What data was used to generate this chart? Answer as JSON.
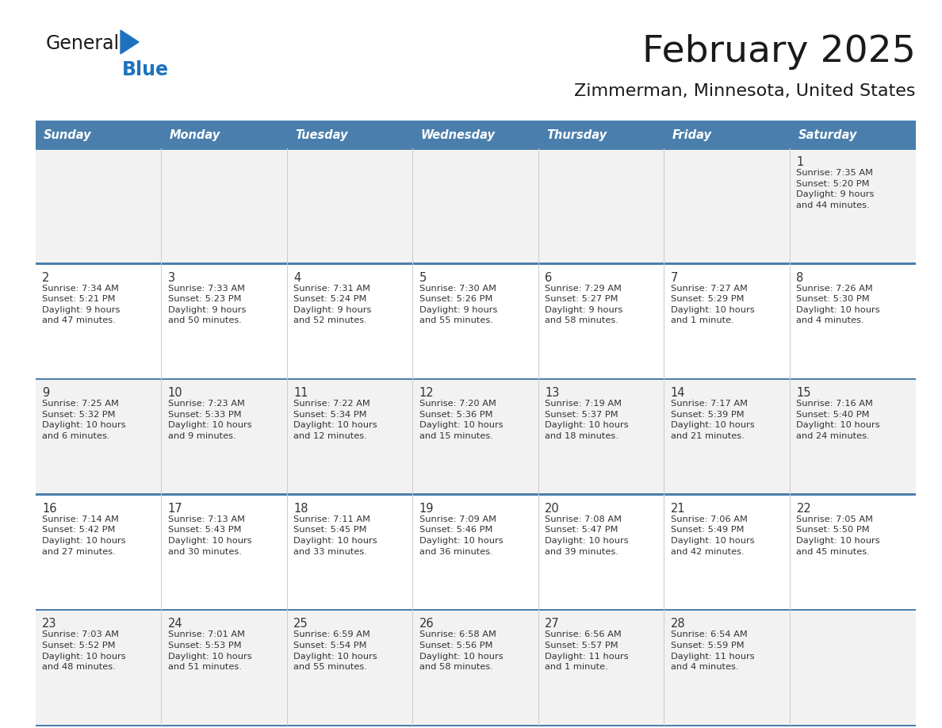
{
  "title": "February 2025",
  "subtitle": "Zimmerman, Minnesota, United States",
  "header_bg_color": "#4A7EAC",
  "header_text_color": "#FFFFFF",
  "row_bg_even": "#F2F2F2",
  "row_bg_odd": "#FFFFFF",
  "border_color": "#4A7EAC",
  "day_number_color": "#333333",
  "cell_text_color": "#333333",
  "days_of_week": [
    "Sunday",
    "Monday",
    "Tuesday",
    "Wednesday",
    "Thursday",
    "Friday",
    "Saturday"
  ],
  "weeks": [
    [
      {
        "day": null,
        "sunrise": null,
        "sunset": null,
        "daylight": null
      },
      {
        "day": null,
        "sunrise": null,
        "sunset": null,
        "daylight": null
      },
      {
        "day": null,
        "sunrise": null,
        "sunset": null,
        "daylight": null
      },
      {
        "day": null,
        "sunrise": null,
        "sunset": null,
        "daylight": null
      },
      {
        "day": null,
        "sunrise": null,
        "sunset": null,
        "daylight": null
      },
      {
        "day": null,
        "sunrise": null,
        "sunset": null,
        "daylight": null
      },
      {
        "day": 1,
        "sunrise": "7:35 AM",
        "sunset": "5:20 PM",
        "daylight": "9 hours\nand 44 minutes."
      }
    ],
    [
      {
        "day": 2,
        "sunrise": "7:34 AM",
        "sunset": "5:21 PM",
        "daylight": "9 hours\nand 47 minutes."
      },
      {
        "day": 3,
        "sunrise": "7:33 AM",
        "sunset": "5:23 PM",
        "daylight": "9 hours\nand 50 minutes."
      },
      {
        "day": 4,
        "sunrise": "7:31 AM",
        "sunset": "5:24 PM",
        "daylight": "9 hours\nand 52 minutes."
      },
      {
        "day": 5,
        "sunrise": "7:30 AM",
        "sunset": "5:26 PM",
        "daylight": "9 hours\nand 55 minutes."
      },
      {
        "day": 6,
        "sunrise": "7:29 AM",
        "sunset": "5:27 PM",
        "daylight": "9 hours\nand 58 minutes."
      },
      {
        "day": 7,
        "sunrise": "7:27 AM",
        "sunset": "5:29 PM",
        "daylight": "10 hours\nand 1 minute."
      },
      {
        "day": 8,
        "sunrise": "7:26 AM",
        "sunset": "5:30 PM",
        "daylight": "10 hours\nand 4 minutes."
      }
    ],
    [
      {
        "day": 9,
        "sunrise": "7:25 AM",
        "sunset": "5:32 PM",
        "daylight": "10 hours\nand 6 minutes."
      },
      {
        "day": 10,
        "sunrise": "7:23 AM",
        "sunset": "5:33 PM",
        "daylight": "10 hours\nand 9 minutes."
      },
      {
        "day": 11,
        "sunrise": "7:22 AM",
        "sunset": "5:34 PM",
        "daylight": "10 hours\nand 12 minutes."
      },
      {
        "day": 12,
        "sunrise": "7:20 AM",
        "sunset": "5:36 PM",
        "daylight": "10 hours\nand 15 minutes."
      },
      {
        "day": 13,
        "sunrise": "7:19 AM",
        "sunset": "5:37 PM",
        "daylight": "10 hours\nand 18 minutes."
      },
      {
        "day": 14,
        "sunrise": "7:17 AM",
        "sunset": "5:39 PM",
        "daylight": "10 hours\nand 21 minutes."
      },
      {
        "day": 15,
        "sunrise": "7:16 AM",
        "sunset": "5:40 PM",
        "daylight": "10 hours\nand 24 minutes."
      }
    ],
    [
      {
        "day": 16,
        "sunrise": "7:14 AM",
        "sunset": "5:42 PM",
        "daylight": "10 hours\nand 27 minutes."
      },
      {
        "day": 17,
        "sunrise": "7:13 AM",
        "sunset": "5:43 PM",
        "daylight": "10 hours\nand 30 minutes."
      },
      {
        "day": 18,
        "sunrise": "7:11 AM",
        "sunset": "5:45 PM",
        "daylight": "10 hours\nand 33 minutes."
      },
      {
        "day": 19,
        "sunrise": "7:09 AM",
        "sunset": "5:46 PM",
        "daylight": "10 hours\nand 36 minutes."
      },
      {
        "day": 20,
        "sunrise": "7:08 AM",
        "sunset": "5:47 PM",
        "daylight": "10 hours\nand 39 minutes."
      },
      {
        "day": 21,
        "sunrise": "7:06 AM",
        "sunset": "5:49 PM",
        "daylight": "10 hours\nand 42 minutes."
      },
      {
        "day": 22,
        "sunrise": "7:05 AM",
        "sunset": "5:50 PM",
        "daylight": "10 hours\nand 45 minutes."
      }
    ],
    [
      {
        "day": 23,
        "sunrise": "7:03 AM",
        "sunset": "5:52 PM",
        "daylight": "10 hours\nand 48 minutes."
      },
      {
        "day": 24,
        "sunrise": "7:01 AM",
        "sunset": "5:53 PM",
        "daylight": "10 hours\nand 51 minutes."
      },
      {
        "day": 25,
        "sunrise": "6:59 AM",
        "sunset": "5:54 PM",
        "daylight": "10 hours\nand 55 minutes."
      },
      {
        "day": 26,
        "sunrise": "6:58 AM",
        "sunset": "5:56 PM",
        "daylight": "10 hours\nand 58 minutes."
      },
      {
        "day": 27,
        "sunrise": "6:56 AM",
        "sunset": "5:57 PM",
        "daylight": "11 hours\nand 1 minute."
      },
      {
        "day": 28,
        "sunrise": "6:54 AM",
        "sunset": "5:59 PM",
        "daylight": "11 hours\nand 4 minutes."
      },
      {
        "day": null,
        "sunrise": null,
        "sunset": null,
        "daylight": null
      }
    ]
  ],
  "logo_color_general": "#1A1A1A",
  "logo_color_blue": "#1E72BD",
  "logo_triangle_color": "#1E72BD",
  "logo_text_general": "General",
  "logo_text_blue": "Blue"
}
